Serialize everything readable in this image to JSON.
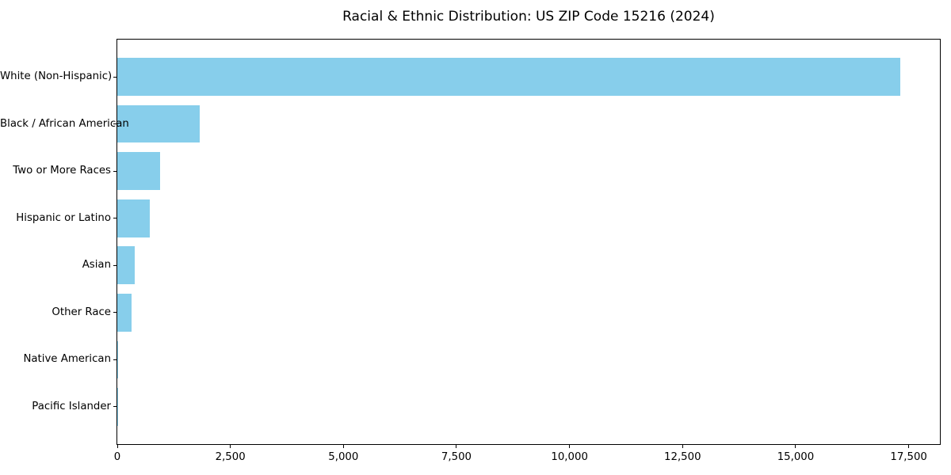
{
  "chart_data": {
    "type": "bar",
    "orientation": "horizontal",
    "title": "Racial & Ethnic Distribution: US ZIP Code 15216 (2024)",
    "categories": [
      "White (Non-Hispanic)",
      "Black / African American",
      "Two or More Races",
      "Hispanic or Latino",
      "Asian",
      "Other Race",
      "Native American",
      "Pacific Islander"
    ],
    "values": [
      17320,
      1820,
      950,
      710,
      380,
      310,
      20,
      10
    ],
    "xlabel": "",
    "ylabel": "",
    "xlim": [
      0,
      18190
    ],
    "xticks": [
      0,
      2500,
      5000,
      7500,
      10000,
      12500,
      15000,
      17500
    ],
    "xtick_labels": [
      "0",
      "2,500",
      "5,000",
      "7,500",
      "10,000",
      "12,500",
      "15,000",
      "17,500"
    ],
    "bar_color": "#87CEEB",
    "grid": false,
    "legend": null,
    "note": "bars sorted descending, largest at top"
  }
}
